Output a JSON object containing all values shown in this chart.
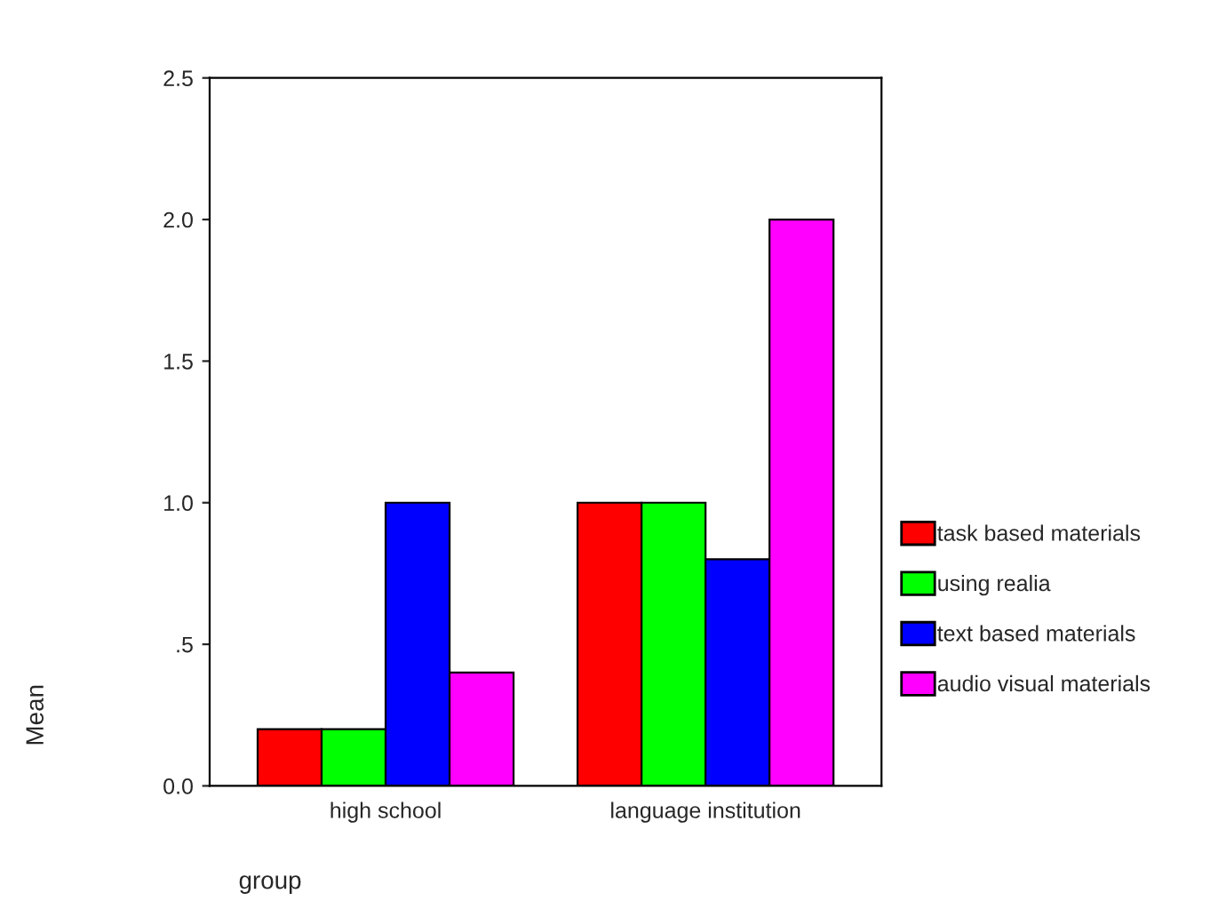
{
  "chart_data": {
    "type": "bar",
    "xlabel": "group",
    "ylabel": "Mean",
    "categories": [
      "high school",
      "language institution"
    ],
    "series": [
      {
        "name": "task based materials",
        "color": "#ff0000",
        "values": [
          0.2,
          1.0
        ]
      },
      {
        "name": "using realia",
        "color": "#00ff00",
        "values": [
          0.2,
          1.0
        ]
      },
      {
        "name": "text based materials",
        "color": "#0000ff",
        "values": [
          1.0,
          0.8
        ]
      },
      {
        "name": "audio visual materials",
        "color": "#ff00ff",
        "values": [
          0.4,
          2.0
        ]
      }
    ],
    "ylim": [
      0,
      2.5
    ],
    "yticks": [
      {
        "value": 0,
        "label": "0.0"
      },
      {
        "value": 0.5,
        "label": ".5"
      },
      {
        "value": 1,
        "label": "1.0"
      },
      {
        "value": 1.5,
        "label": "1.5"
      },
      {
        "value": 2,
        "label": "2.0"
      },
      {
        "value": 2.5,
        "label": "2.5"
      }
    ],
    "grid": false,
    "legend": "right"
  }
}
